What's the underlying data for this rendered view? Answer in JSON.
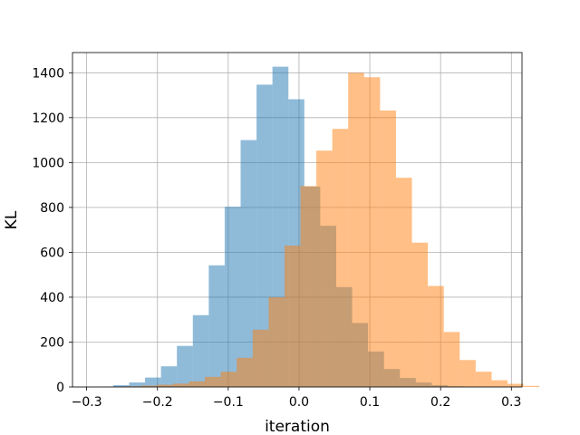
{
  "chart_data": {
    "type": "bar",
    "subtype": "overlapping-histogram",
    "title": "",
    "xlabel": "iteration",
    "ylabel": "KL",
    "xlim": [
      -0.32,
      0.315
    ],
    "ylim": [
      0,
      1490
    ],
    "grid": true,
    "legend": "none",
    "x_ticks": [
      -0.3,
      -0.2,
      -0.1,
      0.0,
      0.1,
      0.2,
      0.3
    ],
    "x_tick_labels": [
      "−0.3",
      "−0.2",
      "−0.1",
      "0.0",
      "0.1",
      "0.2",
      "0.3"
    ],
    "y_ticks": [
      0,
      200,
      400,
      600,
      800,
      1000,
      1200,
      1400
    ],
    "y_tick_labels": [
      "0",
      "200",
      "400",
      "600",
      "800",
      "1000",
      "1200",
      "1400"
    ],
    "series": [
      {
        "color": "#1f77b4",
        "opacity": 0.5,
        "bin_start": -0.285,
        "bin_width": 0.0225,
        "values": [
          1,
          8,
          20,
          42,
          92,
          183,
          320,
          542,
          803,
          1100,
          1347,
          1427,
          1282,
          893,
          718,
          445,
          285,
          158,
          80,
          40,
          20,
          8,
          3
        ]
      },
      {
        "color": "#ff7f0e",
        "opacity": 0.5,
        "bin_start": -0.268,
        "bin_width": 0.0225,
        "values": [
          1,
          3,
          6,
          10,
          15,
          25,
          45,
          68,
          130,
          255,
          400,
          630,
          895,
          1053,
          1150,
          1400,
          1380,
          1232,
          932,
          643,
          450,
          245,
          120,
          68,
          30,
          14,
          5
        ]
      }
    ]
  }
}
